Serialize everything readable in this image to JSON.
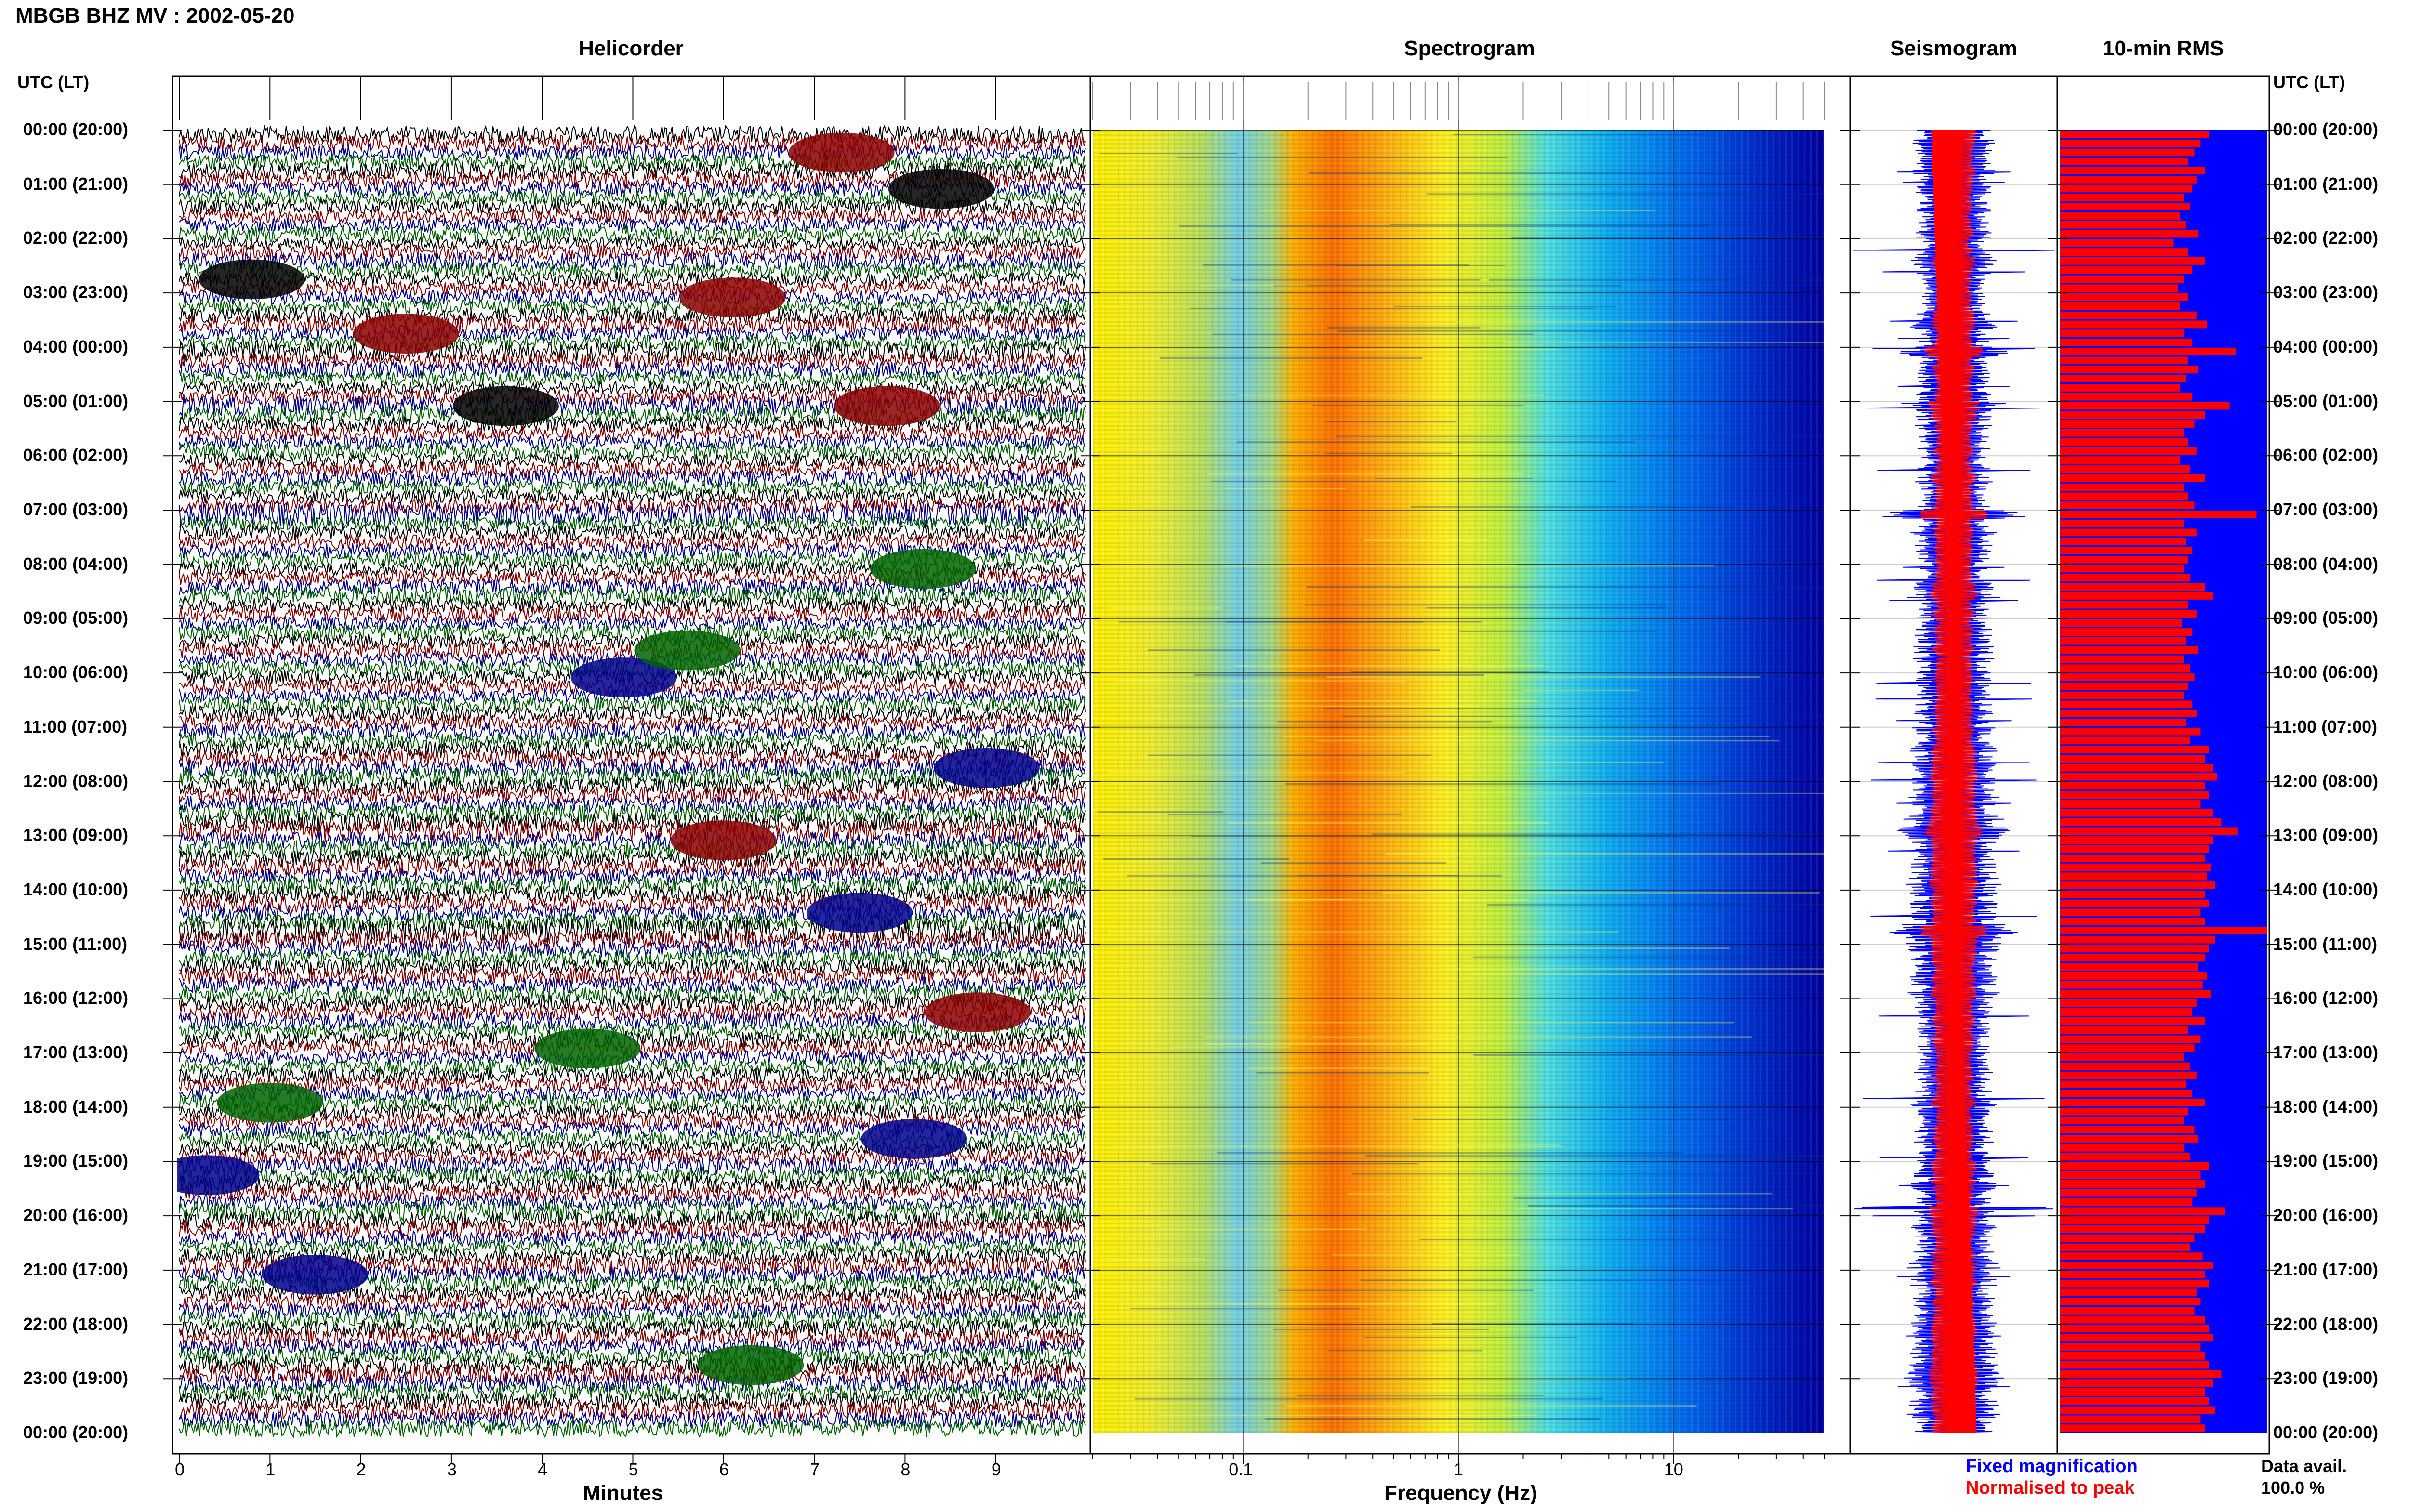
{
  "page_title": "MBGB BHZ MV : 2002-05-20",
  "time_axis_label": "UTC (LT)",
  "panels": {
    "helicorder": "Helicorder",
    "spectrogram": "Spectrogram",
    "seismogram": "Seismogram",
    "rms": "10-min RMS"
  },
  "legend": {
    "fixed": "Fixed magnification",
    "normalised": "Normalised to peak",
    "data_avail_label": "Data avail.",
    "data_avail_value": "100.0 %"
  },
  "colors": {
    "trace_cycle": [
      "#000000",
      "#8b0000",
      "#00008b",
      "#006400"
    ],
    "rms_bar": "#ff0000",
    "rms_bg": "#0000ff",
    "seis_fixed": "#0000ff",
    "seis_norm": "#ff0000",
    "legend_fixed": "#0000ff",
    "legend_norm": "#ff0000"
  },
  "chart_data": [
    {
      "type": "line",
      "title": "Helicorder",
      "xlabel": "Minutes",
      "x_ticks": [
        "0",
        "1",
        "2",
        "3",
        "4",
        "5",
        "6",
        "7",
        "8",
        "9"
      ],
      "xlim": [
        0,
        10
      ],
      "y_ticks": [
        "00:00 (20:00)",
        "01:00 (21:00)",
        "02:00 (22:00)",
        "03:00 (23:00)",
        "04:00 (00:00)",
        "05:00 (01:00)",
        "06:00 (02:00)",
        "07:00 (03:00)",
        "08:00 (04:00)",
        "09:00 (05:00)",
        "10:00 (06:00)",
        "11:00 (07:00)",
        "12:00 (08:00)",
        "13:00 (09:00)",
        "14:00 (10:00)",
        "15:00 (11:00)",
        "16:00 (12:00)",
        "17:00 (13:00)",
        "18:00 (14:00)",
        "19:00 (15:00)",
        "20:00 (16:00)",
        "21:00 (17:00)",
        "22:00 (18:00)",
        "23:00 (19:00)",
        "00:00 (20:00)"
      ],
      "rows": 144,
      "minutes_per_row": 10
    },
    {
      "type": "heatmap",
      "title": "Spectrogram",
      "xlabel": "Frequency (Hz)",
      "x_scale": "log",
      "x_ticks": [
        "0.1",
        "1",
        "10"
      ],
      "xlim": [
        0.02,
        50
      ],
      "colormap": "jet"
    },
    {
      "type": "line",
      "title": "Seismogram",
      "series": [
        {
          "name": "Fixed magnification"
        },
        {
          "name": "Normalised to peak"
        }
      ]
    },
    {
      "type": "bar",
      "title": "10-min RMS",
      "orientation": "horizontal",
      "rows": 144,
      "values_relative": [
        0.72,
        0.68,
        0.65,
        0.62,
        0.7,
        0.66,
        0.64,
        0.6,
        0.63,
        0.58,
        0.61,
        0.67,
        0.55,
        0.62,
        0.7,
        0.64,
        0.6,
        0.57,
        0.62,
        0.58,
        0.66,
        0.71,
        0.6,
        0.64,
        0.85,
        0.62,
        0.67,
        0.61,
        0.58,
        0.64,
        0.82,
        0.7,
        0.65,
        0.6,
        0.62,
        0.66,
        0.58,
        0.63,
        0.7,
        0.6,
        0.62,
        0.65,
        0.95,
        0.6,
        0.66,
        0.61,
        0.64,
        0.62,
        0.6,
        0.63,
        0.7,
        0.74,
        0.62,
        0.66,
        0.59,
        0.64,
        0.61,
        0.67,
        0.6,
        0.63,
        0.65,
        0.62,
        0.6,
        0.64,
        0.66,
        0.61,
        0.68,
        0.63,
        0.72,
        0.7,
        0.74,
        0.76,
        0.7,
        0.72,
        0.68,
        0.74,
        0.78,
        0.86,
        0.74,
        0.72,
        0.7,
        0.73,
        0.71,
        0.75,
        0.7,
        0.72,
        0.68,
        0.7,
        1.0,
        0.75,
        0.72,
        0.7,
        0.67,
        0.71,
        0.69,
        0.73,
        0.66,
        0.64,
        0.7,
        0.62,
        0.68,
        0.65,
        0.6,
        0.63,
        0.66,
        0.61,
        0.64,
        0.7,
        0.62,
        0.6,
        0.65,
        0.67,
        0.6,
        0.63,
        0.72,
        0.68,
        0.7,
        0.66,
        0.64,
        0.8,
        0.72,
        0.7,
        0.65,
        0.63,
        0.69,
        0.74,
        0.7,
        0.72,
        0.66,
        0.68,
        0.65,
        0.7,
        0.72,
        0.74,
        0.68,
        0.7,
        0.72,
        0.78,
        0.74,
        0.7,
        0.72,
        0.75,
        0.68,
        0.7
      ]
    }
  ]
}
